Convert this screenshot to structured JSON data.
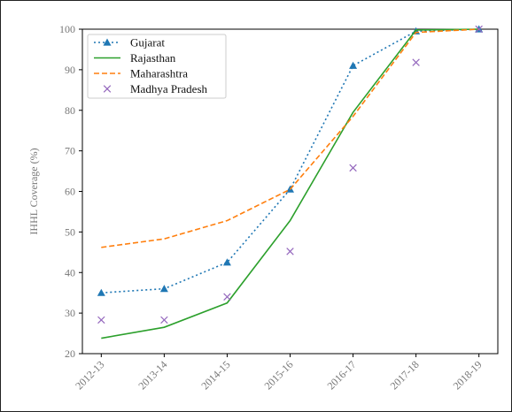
{
  "chart_data": {
    "type": "line",
    "title": "",
    "xlabel": "",
    "ylabel": "IHHL Coverage (%)",
    "categories": [
      "2012-13",
      "2013-14",
      "2014-15",
      "2015-16",
      "2016-17",
      "2017-18",
      "2018-19"
    ],
    "ylim": [
      20,
      100
    ],
    "yticks": [
      20,
      30,
      40,
      50,
      60,
      70,
      80,
      90,
      100
    ],
    "grid": false,
    "legend": "top-left",
    "series": [
      {
        "name": "Gujarat",
        "style": "dotted line with triangle markers",
        "color": "#1f77b4",
        "values": [
          35.0,
          36.0,
          42.5,
          60.5,
          91.0,
          99.5,
          100.0
        ]
      },
      {
        "name": "Rajasthan",
        "style": "solid line",
        "color": "#2ca02c",
        "values": [
          23.8,
          26.5,
          32.5,
          52.8,
          79.5,
          99.8,
          100.0
        ]
      },
      {
        "name": "Maharashtra",
        "style": "dashed line",
        "color": "#ff7f0e",
        "values": [
          46.2,
          48.3,
          52.8,
          60.5,
          78.5,
          99.2,
          100.0
        ]
      },
      {
        "name": "Madhya Pradesh",
        "style": "x markers",
        "color": "#9467bd",
        "values": [
          28.3,
          28.3,
          34.0,
          45.2,
          65.8,
          91.8,
          100.0
        ]
      }
    ]
  }
}
